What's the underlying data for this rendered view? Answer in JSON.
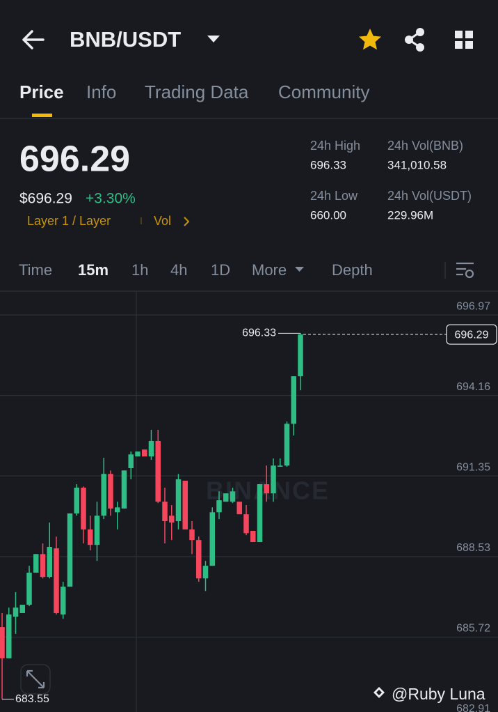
{
  "header": {
    "pair": "BNB/USDT"
  },
  "tabs": [
    "Price",
    "Info",
    "Trading Data",
    "Community"
  ],
  "ticker": {
    "price": "696.29",
    "price_usd": "$696.29",
    "change": "+3.30%",
    "tag": "Layer 1 / Layer",
    "vol_link": "Vol"
  },
  "stats": [
    {
      "label": "24h High",
      "value": "696.33"
    },
    {
      "label": "24h Vol(BNB)",
      "value": "341,010.58"
    },
    {
      "label": "24h Low",
      "value": "660.00"
    },
    {
      "label": "24h Vol(USDT)",
      "value": "229.96M"
    }
  ],
  "intervals": [
    "Time",
    "15m",
    "1h",
    "4h",
    "1D",
    "More",
    "Depth"
  ],
  "chart_data": {
    "type": "candlestick",
    "up_color": "#2ebd85",
    "down_color": "#f6465d",
    "open": [
      686.07,
      684.98,
      686.43,
      686.56,
      686.85,
      687.97,
      688.62,
      687.82,
      688.82,
      686.51,
      687.48,
      690.04,
      690.94,
      689.48,
      688.94,
      689.96,
      691.42,
      690.08,
      690.21,
      691.62,
      692.03,
      692.27,
      692.03,
      692.57,
      690.45,
      689.96,
      689.77,
      691.18,
      689.48,
      689.11,
      687.77,
      688.21,
      690.08,
      690.45,
      690.45,
      690.45,
      690.01,
      689.43,
      689.04,
      691.06,
      690.74,
      691.67,
      691.71,
      693.17,
      694.83
    ],
    "high": [
      686.56,
      686.75,
      687.29,
      686.85,
      688.21,
      688.62,
      688.99,
      689.72,
      689.23,
      687.65,
      690.04,
      691.06,
      690.98,
      689.96,
      690.45,
      691.98,
      691.54,
      690.45,
      691.54,
      692.2,
      692.2,
      692.27,
      692.96,
      692.96,
      690.94,
      690.33,
      691.42,
      691.18,
      689.77,
      689.23,
      688.38,
      690.25,
      690.81,
      690.74,
      690.94,
      690.45,
      690.33,
      689.43,
      691.06,
      691.71,
      691.96,
      691.96,
      693.25,
      694.83,
      696.33
    ],
    "low": [
      683.55,
      684.98,
      685.83,
      686.56,
      686.8,
      687.97,
      687.77,
      687.77,
      686.51,
      686.36,
      687.48,
      689.96,
      688.99,
      688.75,
      688.38,
      689.84,
      689.96,
      689.48,
      690.21,
      691.23,
      692.03,
      692.03,
      691.91,
      690.4,
      688.99,
      689.11,
      689.48,
      689.48,
      688.62,
      687.65,
      687.33,
      688.21,
      689.84,
      690.45,
      690.4,
      690.01,
      689.28,
      689.04,
      689.04,
      690.45,
      690.45,
      691.67,
      691.67,
      692.76,
      694.34
    ],
    "close": [
      684.98,
      686.51,
      686.75,
      686.85,
      687.97,
      688.62,
      687.82,
      688.87,
      686.56,
      687.48,
      690.04,
      690.94,
      689.48,
      688.94,
      689.96,
      691.42,
      690.21,
      690.25,
      691.54,
      692.1,
      692.2,
      692.03,
      692.57,
      690.45,
      689.77,
      689.72,
      691.23,
      689.48,
      689.11,
      687.77,
      688.21,
      690.08,
      690.5,
      690.74,
      690.81,
      690.01,
      689.35,
      689.04,
      691.06,
      690.74,
      691.71,
      691.71,
      693.17,
      694.83,
      696.29
    ],
    "ylim": [
      682.8,
      697.8
    ],
    "yticks": [
      696.97,
      694.16,
      691.35,
      688.53,
      685.72,
      682.91
    ],
    "grid": true,
    "high_marker": 696.33,
    "low_marker": 683.55,
    "last_price": 696.29,
    "watermark": "BINANCE"
  },
  "footer": {
    "credit": "@Ruby Luna"
  }
}
